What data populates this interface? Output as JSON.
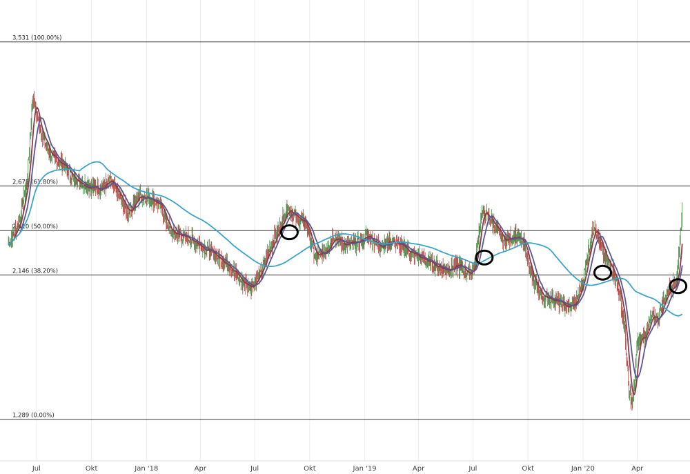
{
  "chart_data": {
    "type": "candlestick",
    "x_axis": {
      "tick_labels": [
        "Jul",
        "Okt",
        "Jan '18",
        "Apr",
        "Jul",
        "Okt",
        "Jan '19",
        "Apr",
        "Jul",
        "Okt",
        "Jan '20",
        "Apr"
      ],
      "range": [
        "2017-05",
        "2020-06"
      ]
    },
    "ylim": [
      1.05,
      3.78
    ],
    "grid": {
      "vertical": true,
      "horizontal": false
    },
    "fib_levels": [
      {
        "value": 3.531,
        "label": "3,531 (100.00%)"
      },
      {
        "value": 2.675,
        "label": "2,675 (61.80%)"
      },
      {
        "value": 2.41,
        "label": "2,410 (50.00%)"
      },
      {
        "value": 2.146,
        "label": "2,146 (38.20%)"
      },
      {
        "value": 1.289,
        "label": "1,289 (0.00%)"
      }
    ],
    "price_anchors": [
      [
        "2017-05-15",
        2.33
      ],
      [
        "2017-06-01",
        2.45
      ],
      [
        "2017-06-15",
        2.7
      ],
      [
        "2017-06-25",
        3.2
      ],
      [
        "2017-07-08",
        3.0
      ],
      [
        "2017-07-25",
        2.85
      ],
      [
        "2017-08-15",
        2.8
      ],
      [
        "2017-09-01",
        2.72
      ],
      [
        "2017-09-20",
        2.68
      ],
      [
        "2017-10-15",
        2.66
      ],
      [
        "2017-11-01",
        2.7
      ],
      [
        "2017-11-15",
        2.62
      ],
      [
        "2017-12-01",
        2.52
      ],
      [
        "2017-12-20",
        2.62
      ],
      [
        "2018-01-10",
        2.6
      ],
      [
        "2018-01-25",
        2.55
      ],
      [
        "2018-02-10",
        2.4
      ],
      [
        "2018-03-01",
        2.38
      ],
      [
        "2018-03-20",
        2.35
      ],
      [
        "2018-04-10",
        2.3
      ],
      [
        "2018-05-01",
        2.25
      ],
      [
        "2018-05-20",
        2.2
      ],
      [
        "2018-06-10",
        2.1
      ],
      [
        "2018-06-25",
        2.08
      ],
      [
        "2018-07-10",
        2.15
      ],
      [
        "2018-07-25",
        2.3
      ],
      [
        "2018-08-10",
        2.42
      ],
      [
        "2018-08-25",
        2.55
      ],
      [
        "2018-09-10",
        2.48
      ],
      [
        "2018-09-25",
        2.45
      ],
      [
        "2018-10-10",
        2.25
      ],
      [
        "2018-10-25",
        2.28
      ],
      [
        "2018-11-10",
        2.38
      ],
      [
        "2018-11-25",
        2.33
      ],
      [
        "2018-12-15",
        2.33
      ],
      [
        "2019-01-05",
        2.38
      ],
      [
        "2019-01-25",
        2.32
      ],
      [
        "2019-02-15",
        2.35
      ],
      [
        "2019-03-10",
        2.3
      ],
      [
        "2019-04-01",
        2.25
      ],
      [
        "2019-04-20",
        2.22
      ],
      [
        "2019-05-15",
        2.18
      ],
      [
        "2019-06-10",
        2.2
      ],
      [
        "2019-06-25",
        2.15
      ],
      [
        "2019-07-05",
        2.22
      ],
      [
        "2019-07-15",
        2.52
      ],
      [
        "2019-07-30",
        2.48
      ],
      [
        "2019-08-20",
        2.35
      ],
      [
        "2019-09-10",
        2.38
      ],
      [
        "2019-09-25",
        2.32
      ],
      [
        "2019-10-10",
        2.1
      ],
      [
        "2019-10-25",
        2.02
      ],
      [
        "2019-11-15",
        2.0
      ],
      [
        "2019-12-05",
        1.95
      ],
      [
        "2019-12-20",
        1.98
      ],
      [
        "2020-01-01",
        2.12
      ],
      [
        "2020-01-10",
        2.3
      ],
      [
        "2020-01-20",
        2.45
      ],
      [
        "2020-02-01",
        2.3
      ],
      [
        "2020-02-10",
        2.22
      ],
      [
        "2020-02-20",
        2.18
      ],
      [
        "2020-03-01",
        2.05
      ],
      [
        "2020-03-10",
        1.85
      ],
      [
        "2020-03-18",
        1.45
      ],
      [
        "2020-03-24",
        1.38
      ],
      [
        "2020-04-01",
        1.75
      ],
      [
        "2020-04-15",
        1.8
      ],
      [
        "2020-04-25",
        1.9
      ],
      [
        "2020-05-05",
        1.88
      ],
      [
        "2020-05-15",
        2.0
      ],
      [
        "2020-05-25",
        2.07
      ],
      [
        "2020-06-05",
        2.1
      ],
      [
        "2020-06-10",
        2.3
      ],
      [
        "2020-06-15",
        2.55
      ]
    ],
    "series": [
      {
        "type": "candle",
        "color_up": "#3f8a3f",
        "color_down": "#b03a3a"
      },
      {
        "type": "moving_average",
        "window": 10,
        "color": "#8a3a4a"
      },
      {
        "type": "moving_average",
        "window": 20,
        "color": "#5a5690"
      },
      {
        "type": "moving_average",
        "window": 120,
        "color": "#3aa3c8"
      }
    ],
    "markers": [
      {
        "shape": "ellipse",
        "date": "2018-08-28",
        "value": 2.4
      },
      {
        "shape": "ellipse",
        "date": "2019-07-20",
        "value": 2.25
      },
      {
        "shape": "ellipse",
        "date": "2020-02-03",
        "value": 2.16
      },
      {
        "shape": "ellipse",
        "date": "2020-06-08",
        "value": 2.08
      }
    ],
    "colors": {
      "background": "#ffffff",
      "grid": "#ececec",
      "level_line": "#333333",
      "marker": "#000000"
    }
  }
}
